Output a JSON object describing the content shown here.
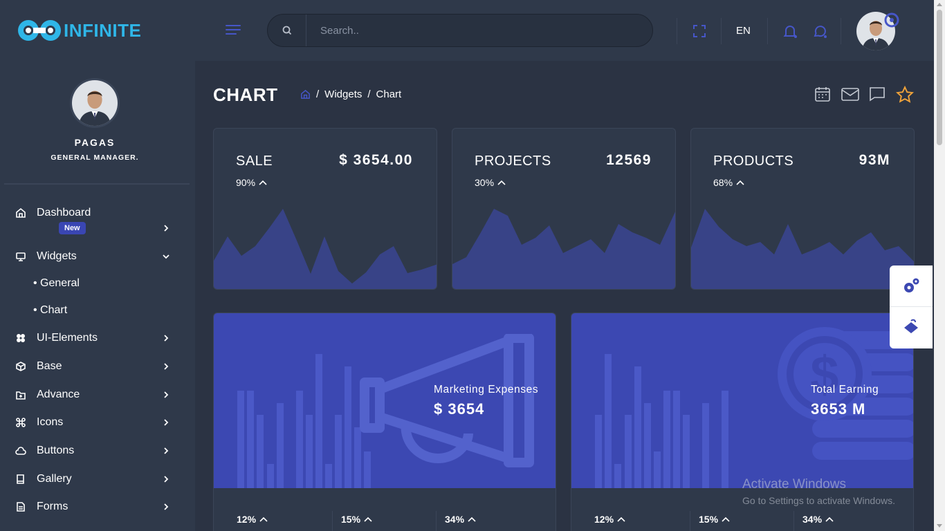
{
  "app": {
    "logo_text": "INFINITE"
  },
  "header": {
    "search_placeholder": "Search..",
    "language": "EN"
  },
  "profile": {
    "name": "PAGAS",
    "role": "GENERAL MANAGER."
  },
  "sidebar": {
    "items": [
      {
        "label": "Dashboard",
        "badge": "New"
      },
      {
        "label": "Widgets"
      },
      {
        "label": "UI-Elements"
      },
      {
        "label": "Base"
      },
      {
        "label": "Advance"
      },
      {
        "label": "Icons"
      },
      {
        "label": "Buttons"
      },
      {
        "label": "Gallery"
      },
      {
        "label": "Forms"
      }
    ],
    "widgets_sub": [
      "General",
      "Chart"
    ]
  },
  "page": {
    "title": "CHART",
    "breadcrumb": [
      "Widgets",
      "Chart"
    ]
  },
  "stats": [
    {
      "label": "SALE",
      "value": "$ 3654.00",
      "pct": "90%"
    },
    {
      "label": "PROJECTS",
      "value": "12569",
      "pct": "30%"
    },
    {
      "label": "PRODUCTS",
      "value": "93M",
      "pct": "68%"
    }
  ],
  "big_cards": [
    {
      "label": "Marketing Expenses",
      "value": "$ 3654",
      "stats": [
        "12%",
        "15%",
        "34%"
      ]
    },
    {
      "label": "Total Earning",
      "value": "3653 M",
      "stats": [
        "12%",
        "15%",
        "34%"
      ]
    }
  ],
  "watermark": {
    "title": "Activate Windows",
    "subtitle": "Go to Settings to activate Windows."
  },
  "colors": {
    "accent": "#3c48b2",
    "background": "#2b3343",
    "panel": "#2f394a",
    "star": "#f0a33a"
  }
}
